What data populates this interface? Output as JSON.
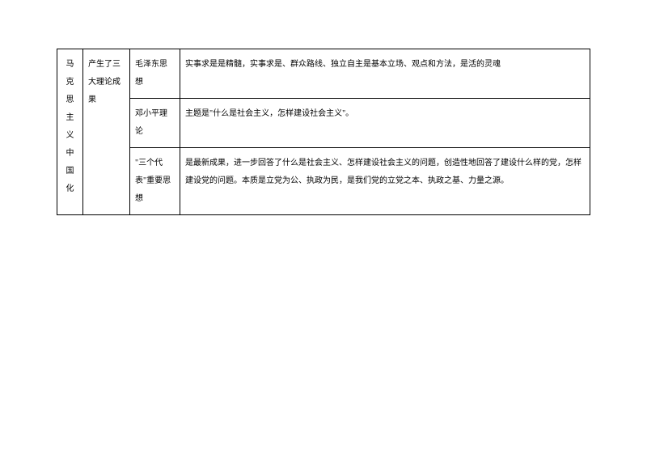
{
  "table": {
    "border_color": "#000000",
    "background_color": "#ffffff",
    "font_size": 10,
    "text_color": "#000000",
    "col1_label": "马克思主义中国化",
    "col2_label": "产生了三大理论成果",
    "rows": [
      {
        "theory": "毛泽东思想",
        "description": "实事求是是精髓，实事求是、群众路线、独立自主是基本立场、观点和方法，是活的灵魂"
      },
      {
        "theory": "邓小平理论",
        "description": "主题是\"什么是社会主义，怎样建设社会主义\"。"
      },
      {
        "theory": "\"三个代表\"重要思想",
        "description": "是最新成果，进一步回答了什么是社会主义、怎样建设社会主义的问题，创造性地回答了建设什么样的党，怎样建设党的问题。本质是立党为公、执政为民，是我们党的立党之本、执政之基、力量之源。"
      }
    ]
  }
}
